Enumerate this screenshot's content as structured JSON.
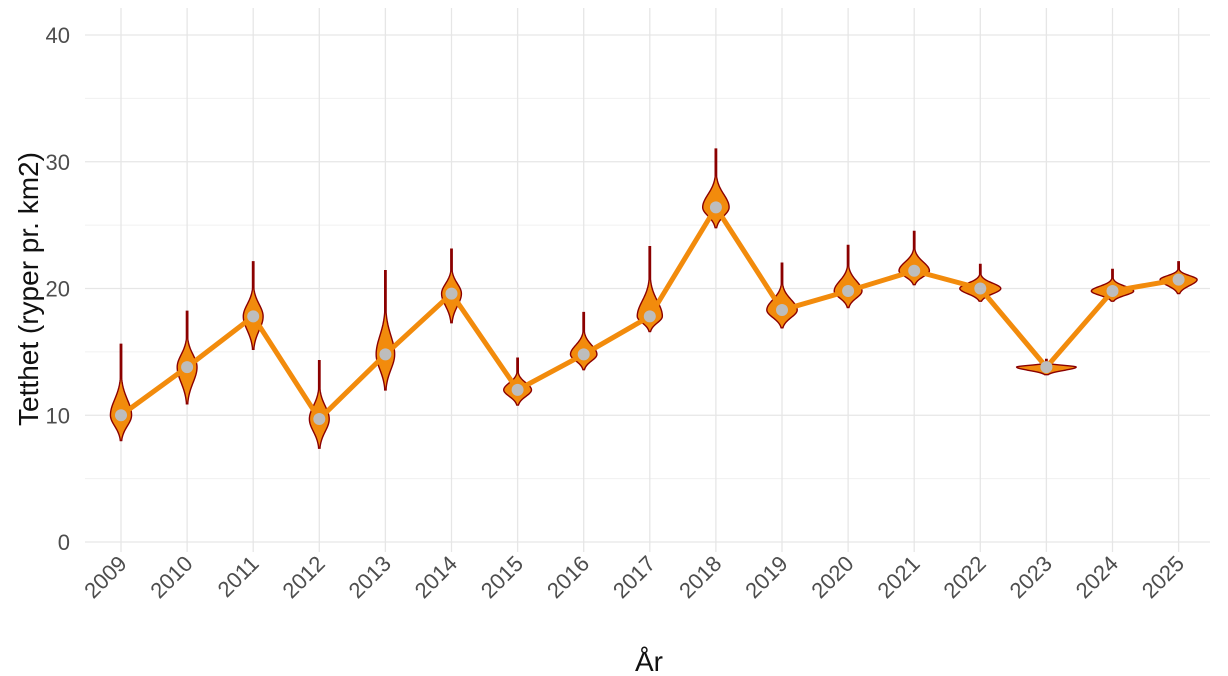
{
  "chart_data": {
    "type": "line",
    "title": "",
    "xlabel": "År",
    "ylabel": "Tetthet (ryper pr. km2)",
    "ylim": [
      0,
      40
    ],
    "y_ticks": [
      "0",
      "10",
      "20",
      "30",
      "40"
    ],
    "categories": [
      "2009",
      "2010",
      "2011",
      "2012",
      "2013",
      "2014",
      "2015",
      "2016",
      "2017",
      "2018",
      "2019",
      "2020",
      "2021",
      "2022",
      "2023",
      "2024",
      "2025"
    ],
    "series": [
      {
        "values": [
          10.0,
          13.8,
          17.8,
          9.7,
          14.8,
          19.6,
          12.0,
          14.8,
          17.8,
          26.4,
          18.3,
          19.8,
          21.4,
          20.0,
          13.8,
          19.8,
          20.7
        ]
      }
    ],
    "distributions": [
      {
        "low": 8.0,
        "high": 15.6,
        "width": 0.32
      },
      {
        "low": 10.9,
        "high": 18.2,
        "width": 0.3
      },
      {
        "low": 15.2,
        "high": 22.1,
        "width": 0.3
      },
      {
        "low": 7.4,
        "high": 14.3,
        "width": 0.3
      },
      {
        "low": 12.0,
        "high": 21.4,
        "width": 0.28
      },
      {
        "low": 17.3,
        "high": 23.1,
        "width": 0.3
      },
      {
        "low": 10.8,
        "high": 14.5,
        "width": 0.42
      },
      {
        "low": 13.6,
        "high": 18.1,
        "width": 0.4
      },
      {
        "low": 16.6,
        "high": 23.3,
        "width": 0.38
      },
      {
        "low": 24.8,
        "high": 31.0,
        "width": 0.4
      },
      {
        "low": 16.9,
        "high": 22.0,
        "width": 0.46
      },
      {
        "low": 18.5,
        "high": 23.4,
        "width": 0.42
      },
      {
        "low": 20.3,
        "high": 24.5,
        "width": 0.46
      },
      {
        "low": 19.0,
        "high": 21.9,
        "width": 0.62
      },
      {
        "low": 13.2,
        "high": 14.4,
        "width": 0.9
      },
      {
        "low": 19.0,
        "high": 21.5,
        "width": 0.64
      },
      {
        "low": 19.6,
        "high": 22.1,
        "width": 0.56
      }
    ],
    "colors": {
      "line": "#f28b0c",
      "violin_fill": "#f28b0c",
      "violin_outline": "#8b0000",
      "point": "#bdbdbd",
      "grid": "#e6e6e6"
    },
    "grid": true,
    "legend": "none"
  }
}
